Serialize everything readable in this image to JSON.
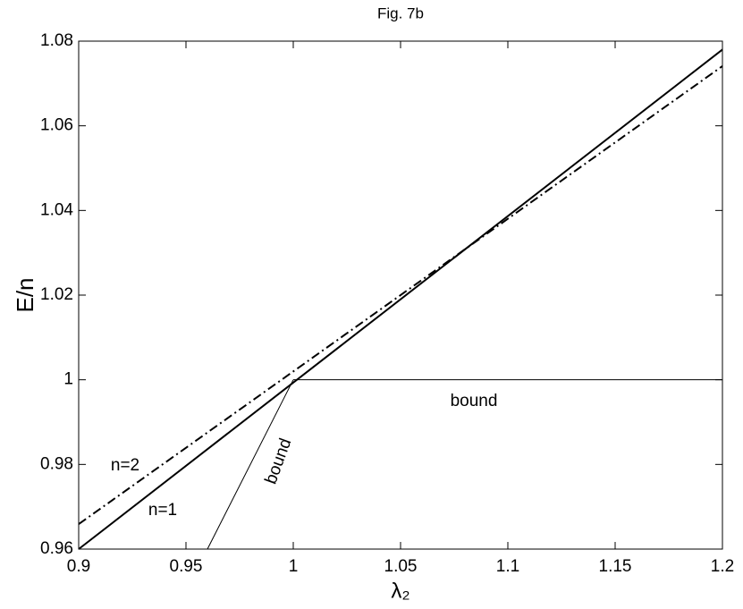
{
  "chart_data": {
    "type": "line",
    "title": "Fig. 7b",
    "xlabel": "λ₂",
    "ylabel": "E/n",
    "xlim": [
      0.9,
      1.2
    ],
    "ylim": [
      0.96,
      1.08
    ],
    "xticks": [
      0.9,
      0.95,
      1,
      1.05,
      1.1,
      1.15,
      1.2
    ],
    "yticks": [
      0.96,
      0.98,
      1,
      1.02,
      1.04,
      1.06,
      1.08
    ],
    "grid": false,
    "series": [
      {
        "color": "#000000",
        "linestyle": "solid",
        "weight": "bold",
        "x": [
          0.9,
          1.2
        ],
        "values": [
          0.96,
          1.078
        ]
      },
      {
        "color": "#000000",
        "linestyle": "dashdot",
        "weight": "bold",
        "x": [
          0.9,
          1.2
        ],
        "values": [
          0.9659,
          1.0741
        ]
      },
      {
        "color": "#000000",
        "linestyle": "solid",
        "weight": "thin",
        "x": [
          1,
          1.2
        ],
        "values": [
          1,
          1
        ]
      },
      {
        "color": "#000000",
        "linestyle": "solid",
        "weight": "thin",
        "x": [
          0.96,
          1
        ],
        "values": [
          0.96,
          1
        ]
      }
    ],
    "annotations": [
      "bound",
      "bound",
      "n=2",
      "n=1"
    ]
  }
}
